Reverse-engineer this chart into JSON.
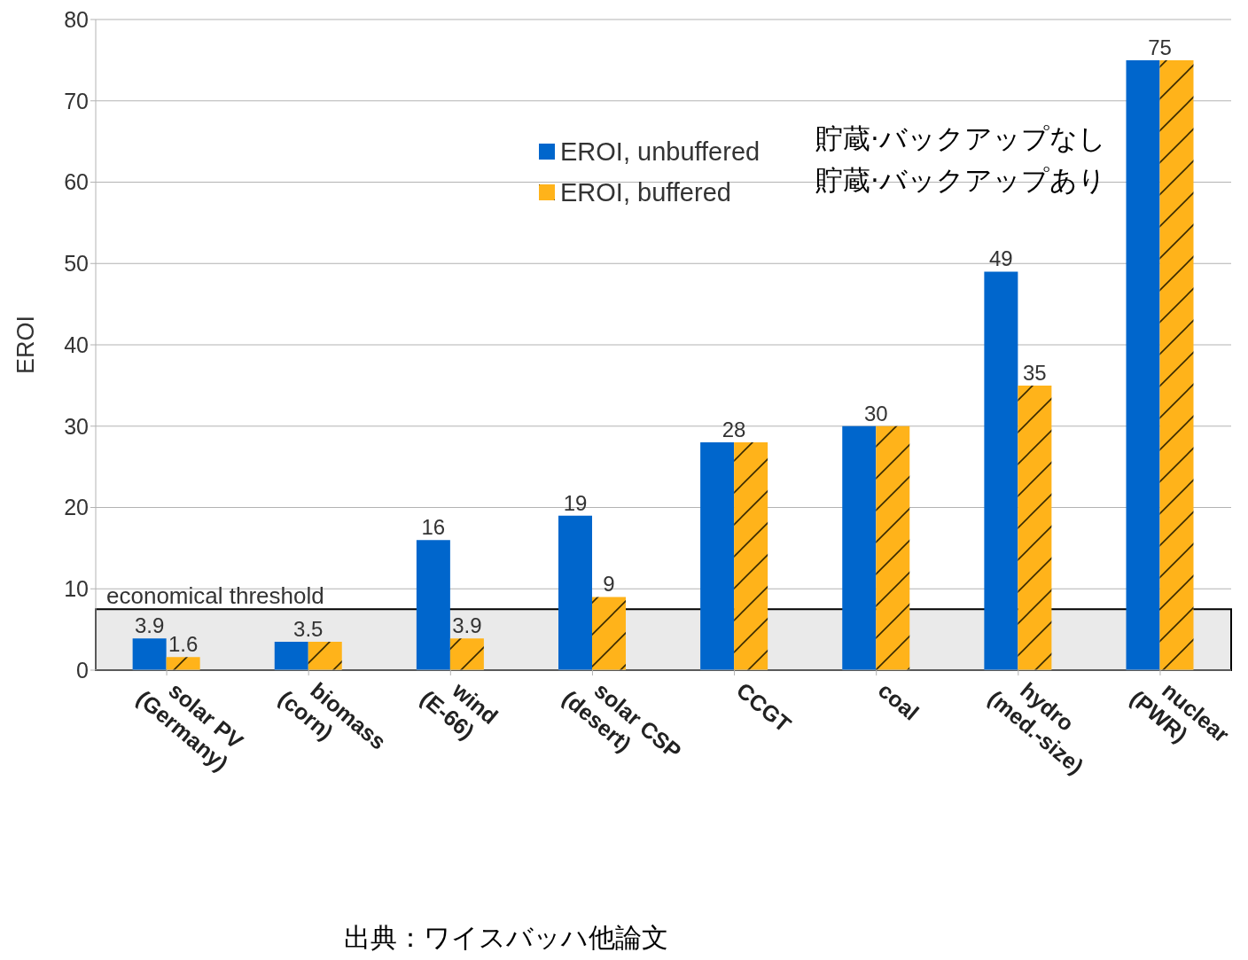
{
  "chart_data": {
    "type": "bar",
    "ylabel": "EROI",
    "categories": [
      "solar PV (Germany)",
      "biomass (corn)",
      "wind (E-66)",
      "solar CSP (desert)",
      "CCGT",
      "coal",
      "hydro (med.-size)",
      "nuclear (PWR)"
    ],
    "series": [
      {
        "name": "EROI, unbuffered",
        "color": "#0066cc",
        "values": [
          3.9,
          3.5,
          16,
          19,
          28,
          30,
          49,
          75
        ],
        "value_labels": [
          "3.9",
          "3.5",
          "16",
          "19",
          "28",
          "30",
          "49",
          "75"
        ]
      },
      {
        "name": "EROI, buffered",
        "color": "#ffb31a",
        "values": [
          1.6,
          3.5,
          3.9,
          9,
          28,
          30,
          35,
          75
        ],
        "value_labels": [
          "1.6",
          null,
          "3.9",
          "9",
          null,
          null,
          "35",
          null
        ]
      }
    ],
    "ylim": [
      0,
      80
    ],
    "yticks": [
      0,
      10,
      20,
      30,
      40,
      50,
      60,
      70,
      80
    ],
    "grid": "y",
    "legend": "top",
    "bands": [
      {
        "axis": "y",
        "from": 0,
        "to": 7.5,
        "label": "economical threshold",
        "color": "#d9d9d9"
      }
    ],
    "annotations": [
      "貯蔵·バックアップなし",
      "貯蔵·バックアップあり",
      "出典：ワイスバッハ他論文"
    ]
  }
}
